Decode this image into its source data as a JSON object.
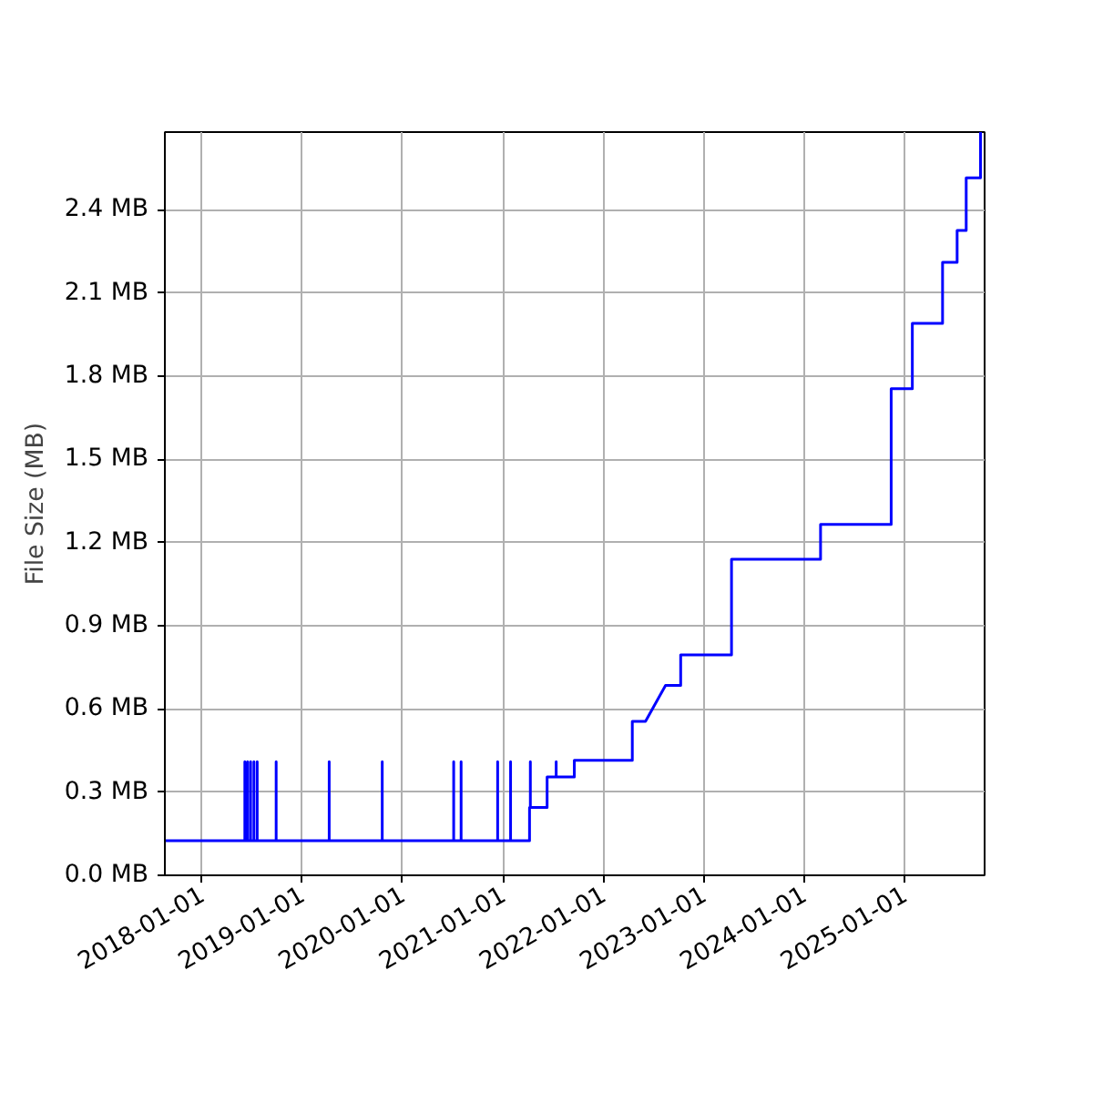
{
  "chart_data": {
    "type": "line",
    "ylabel": "File Size (MB)",
    "x": [
      "2017-08-20",
      "2018-06-07",
      "2018-06-07",
      "2018-06-07",
      "2018-06-17",
      "2018-06-17",
      "2018-06-17",
      "2018-06-28",
      "2018-06-28",
      "2018-06-28",
      "2018-07-10",
      "2018-07-10",
      "2018-07-10",
      "2018-07-22",
      "2018-07-22",
      "2018-07-22",
      "2018-09-29",
      "2018-09-29",
      "2018-09-29",
      "2019-04-10",
      "2019-04-10",
      "2019-04-10",
      "2019-10-20",
      "2019-10-20",
      "2019-10-20",
      "2020-07-06",
      "2020-07-06",
      "2020-07-06",
      "2020-08-02",
      "2020-08-02",
      "2020-08-02",
      "2020-12-13",
      "2020-12-13",
      "2020-12-13",
      "2021-01-29",
      "2021-01-29",
      "2021-01-29",
      "2021-04-08",
      "2021-04-08",
      "2021-04-11",
      "2021-04-11",
      "2021-04-11",
      "2021-06-11",
      "2021-06-11",
      "2021-07-14",
      "2021-07-14",
      "2021-07-14",
      "2021-09-18",
      "2021-09-18",
      "2022-04-17",
      "2022-04-17",
      "2022-06-04",
      "2022-08-16",
      "2022-10-10",
      "2022-10-10",
      "2023-04-13",
      "2023-04-13",
      "2024-03-02",
      "2024-03-02",
      "2024-11-14",
      "2024-11-14",
      "2025-01-30",
      "2025-01-30",
      "2025-05-20",
      "2025-05-20",
      "2025-07-12",
      "2025-07-12",
      "2025-08-14",
      "2025-08-14",
      "2025-10-05",
      "2025-10-05"
    ],
    "series": [
      {
        "color": "#0000ff",
        "values": [
          0.125,
          0.125,
          0.41,
          0.125,
          0.125,
          0.41,
          0.125,
          0.125,
          0.41,
          0.125,
          0.125,
          0.41,
          0.125,
          0.125,
          0.41,
          0.125,
          0.125,
          0.41,
          0.125,
          0.125,
          0.41,
          0.125,
          0.125,
          0.41,
          0.125,
          0.125,
          0.41,
          0.125,
          0.125,
          0.41,
          0.125,
          0.125,
          0.41,
          0.125,
          0.125,
          0.41,
          0.125,
          0.125,
          0.245,
          0.245,
          0.41,
          0.245,
          0.245,
          0.355,
          0.355,
          0.41,
          0.355,
          0.355,
          0.415,
          0.415,
          0.555,
          0.555,
          0.685,
          0.685,
          0.795,
          0.795,
          1.14,
          1.14,
          1.265,
          1.265,
          1.755,
          1.755,
          1.99,
          1.99,
          2.21,
          2.21,
          2.325,
          2.325,
          2.515,
          2.515,
          2.68
        ]
      }
    ],
    "xlim": [
      "2017-08-20",
      "2025-10-20"
    ],
    "xticks": [
      {
        "value": "2018-01-01",
        "label": "2018-01-01"
      },
      {
        "value": "2019-01-01",
        "label": "2019-01-01"
      },
      {
        "value": "2020-01-01",
        "label": "2020-01-01"
      },
      {
        "value": "2021-01-01",
        "label": "2021-01-01"
      },
      {
        "value": "2022-01-01",
        "label": "2022-01-01"
      },
      {
        "value": "2023-01-01",
        "label": "2023-01-01"
      },
      {
        "value": "2024-01-01",
        "label": "2024-01-01"
      },
      {
        "value": "2025-01-01",
        "label": "2025-01-01"
      }
    ],
    "ylim": [
      0,
      2.68
    ],
    "yticks": [
      {
        "value": 0,
        "label": "0.0 MB"
      },
      {
        "value": 0.3,
        "label": "0.3 MB"
      },
      {
        "value": 0.6,
        "label": "0.6 MB"
      },
      {
        "value": 0.9,
        "label": "0.9 MB"
      },
      {
        "value": 1.2,
        "label": "1.2 MB"
      },
      {
        "value": 1.5,
        "label": "1.5 MB"
      },
      {
        "value": 1.8,
        "label": "1.8 MB"
      },
      {
        "value": 2.1,
        "label": "2.1 MB"
      },
      {
        "value": 2.4,
        "label": "2.4 MB"
      }
    ],
    "grid": true,
    "line_style": "solid",
    "marker": "none"
  }
}
